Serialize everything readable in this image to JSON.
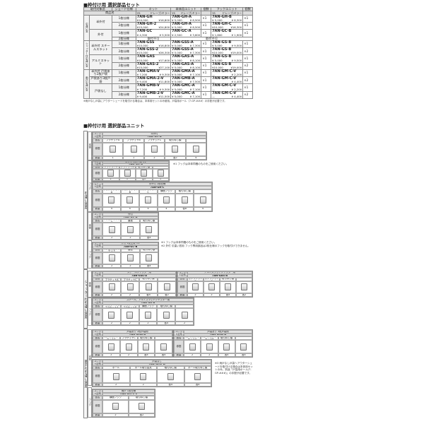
{
  "section1": {
    "title": "枠付け用 選択部品セット",
    "headers": {
      "category": "取付対象窓",
      "series": "シェード仕様",
      "product": "商品名",
      "kit": "キット",
      "body": "本体用ユニット",
      "qty": "個数",
      "hook": "フックユニット",
      "ys": "YS",
      "mon": "ドレープ/ミラー"
    },
    "rows": [
      {
        "g": "引違い窓",
        "s": "半外付",
        "spec": "1枚仕様",
        "kit": [
          "7AN-GH",
          "¥10,000",
          "¥16,800"
        ],
        "body": [
          "7AN-GH-A",
          "¥ 5,000",
          "¥ 8,500"
        ],
        "bq": "×1",
        "hook": [
          "7AN-GH-B",
          "¥ 5,000",
          "¥ 8,300"
        ],
        "hq": "×1"
      },
      {
        "g": "",
        "s": "",
        "spec": "2枚仕様",
        "kit": [
          "7AN-GH-2",
          "¥15,000",
          "¥24,800"
        ],
        "body": [
          "7AN-GH-A",
          "¥ 5,000",
          "¥ 8,500"
        ],
        "bq": "×1",
        "hook": [
          "7AN-GH-C",
          "¥10,000",
          "¥16,300"
        ],
        "hq": "×1"
      },
      {
        "g": "",
        "s": "外付",
        "spec": "1枚仕様",
        "kit": [
          "7AN-GC",
          "¥ 4,300",
          "¥ 5,500"
        ],
        "body": [
          "7AN-GC-A",
          "¥ 2,500",
          "¥ 3,600"
        ],
        "bq": "×1",
        "hook": [
          "7AN-GC-B",
          "¥ 1,800",
          "¥ 1,900"
        ],
        "hq": "×1"
      },
      {
        "g": "",
        "s": "",
        "spec": "2枚仕様",
        "na": "取付不可"
      },
      {
        "g": "シャッター付引違い窓",
        "s": "半外付 スチールスラット",
        "spec": "1枚仕様",
        "kit": [
          "7AN-GSS",
          "¥10,000",
          "¥16,800"
        ],
        "body": [
          "7AN-GSS-A",
          "¥ 5,000",
          "¥ 7,300"
        ],
        "bq": "×1",
        "hook": [
          "7AN-GS-B",
          "¥ 5,000",
          "¥ 9,500"
        ],
        "hq": "×1"
      },
      {
        "g": "",
        "s": "",
        "spec": "2枚仕様",
        "kit": [
          "7AN-GSS-2",
          "¥15,000",
          "¥26,300"
        ],
        "body": [
          "7AN-GSS-A",
          "¥ 5,000",
          "¥ 7,300"
        ],
        "bq": "×1",
        "hook": [
          "7AN-GS-B",
          "¥10,000",
          "¥19,000"
        ],
        "hq": "×2"
      },
      {
        "g": "",
        "s": "アルミスラット",
        "spec": "1枚仕様",
        "kit": [
          "7AN-GAS",
          "¥10,000",
          "¥17,600"
        ],
        "body": [
          "7AN-GAS-A",
          "¥ 5,000",
          "¥ 8,100"
        ],
        "bq": "×1",
        "hook": [
          "7AN-GS-B",
          "¥ 5,000",
          "¥ 9,500"
        ],
        "hq": "×1"
      },
      {
        "g": "",
        "s": "",
        "spec": "2枚仕様",
        "kit": [
          "7AN-GAS-2",
          "¥15,000",
          "¥27,100"
        ],
        "body": [
          "7AN-GAS-A",
          "¥ 5,000",
          "¥ 8,100"
        ],
        "bq": "×1",
        "hook": [
          "7AN-GS-B",
          "¥10,000",
          "¥19,000"
        ],
        "hq": "×2"
      },
      {
        "g": "雨戸引違い窓",
        "s": "半外付 戸袋あり2枚戸袋",
        "spec": "1枚仕様",
        "kit": [
          "7AN-GMA-V",
          "¥ 7,200",
          "¥ 9,300"
        ],
        "body": [
          "7AN-GMA-A",
          "¥ 5,000",
          "¥ 7,100"
        ],
        "bq": "×1",
        "hook": [
          "7AN-GM-C-V",
          "—",
          "¥ 2,200"
        ],
        "hq": "×1"
      },
      {
        "g": "",
        "s": "戸袋あり3枚戸袋",
        "spec": "2枚仕様",
        "kit": [
          "7AN-GMA-2-V",
          "¥ 9,400",
          "¥11,800"
        ],
        "body": [
          "7AN-GMB-A",
          "¥ 5,000",
          "¥ 7,500"
        ],
        "bq": "×1",
        "hook": [
          "7AN-GM-C-V",
          "—",
          "¥ 4,400"
        ],
        "hq": "×2"
      },
      {
        "g": "",
        "s": "戸袋なし",
        "spec": "1枚仕様",
        "kit": [
          "7AN-GMB-V",
          "¥ 7,200",
          "¥ 9,300"
        ],
        "body": [
          "7AN-GMC-A",
          "¥ 5,000",
          "¥ 7,100"
        ],
        "bq": "×1",
        "hook": [
          "7AN-GM-C-V",
          "—",
          "¥ 2,200"
        ],
        "hq": "×1"
      },
      {
        "g": "",
        "s": "",
        "spec": "2枚仕様",
        "kit": [
          "7AN-GMB-2-V",
          "¥ 9,400",
          "¥11,500"
        ],
        "body": [
          "7AN-GMC-A",
          "¥ 5,000",
          "¥ 7,100"
        ],
        "bq": "×1",
        "hook": [
          "7AN-GM-C-V",
          "—",
          "¥ 4,400"
        ],
        "hq": "×2"
      }
    ],
    "footnote": "※雨戸なし戸袋にアウターシェードを取付ける場合は、本体用セットのみ使用。戸袋用ポール（7-GP-###）の手配が必要です。"
  },
  "section2": {
    "title": "枠付け用 選択部品ユニット",
    "labels": {
      "unit": "ユニット記号",
      "name": "品名",
      "fig": "参図",
      "qty": "数量"
    },
    "groups": [
      "引違い窓用",
      "シャッター付引違い窓用",
      "雨戸付引違い窓用"
    ],
    "subs": {
      "body": "本体",
      "hook": "フック"
    },
    "units": [
      {
        "title": "半外付",
        "code": "7AN-GH-A",
        "parts": [
          [
            "ブラケットA",
            "1"
          ],
          [
            "ブラケットB",
            "1"
          ],
          [
            "ブラケットC",
            "2"
          ],
          [
            "取付ねじ類",
            "各2"
          ],
          [
            "",
            "4"
          ]
        ]
      },
      {
        "title": "半外付 1枚仕様 ※1",
        "code": "7AN-GH-B",
        "parts": [
          [
            "ブラケットC",
            "2"
          ],
          [
            "ブラケットD",
            "2"
          ],
          [
            "取付ねじ類",
            "各2"
          ],
          [
            "",
            "4"
          ]
        ]
      },
      {
        "title": "半外付 2枚仕様",
        "code": "7AN-GH-C",
        "parts": [
          [
            "下枠ブラケットA",
            "4"
          ],
          [
            "下枠ブラケットB",
            "4"
          ],
          [
            "下枠ブラケットC",
            "4"
          ],
          [
            "横面フック",
            "4"
          ],
          [
            "取付ねじ類",
            "各8"
          ],
          [
            "",
            "4"
          ]
        ]
      },
      {
        "title": "外付",
        "code": "7AN-GC-A",
        "parts": [
          [
            "本体用ブラケット",
            "2"
          ],
          [
            "裏板",
            "2"
          ],
          [
            "取付ねじ類",
            "各4"
          ]
        ]
      },
      {
        "title": "外付 1枚仕様 ※2",
        "code": "7AN-GC-B",
        "parts": [
          [
            "マグ締付用ブラケット",
            "2"
          ],
          [
            "裏板",
            "2"
          ],
          [
            "取付ねじ類",
            "各4"
          ]
        ]
      },
      {
        "title": "スチールシャッター用",
        "code": "7AN-GSS-A",
        "parts": [
          [
            "シャッター枠付ブラケットA",
            "2"
          ],
          [
            "シャッター枠付ブラケットC",
            "2"
          ],
          [
            "取付ねじ類",
            "各4"
          ],
          [
            "",
            "各2"
          ]
        ]
      },
      {
        "title": "アルミスラットシャッター用",
        "code": "7AN-GAS-A",
        "parts": [
          [
            "シャッター枠付ブラケットB",
            "2"
          ],
          [
            "シャッター枠付ブラケットC",
            "2"
          ],
          [
            "取付ねじ類",
            "各4"
          ],
          [
            "",
            "各2"
          ]
        ]
      },
      {
        "title": "スチール、アルミスラットシャッター用",
        "code": "7AN-GS-B",
        "parts": [
          [
            "シャッター下枠ブラケットA",
            "2"
          ],
          [
            "シャッター下枠ブラケットB",
            "2"
          ],
          [
            "横面フック",
            "2"
          ],
          [
            "取付ねじ類",
            "各4"
          ],
          [
            "",
            "2"
          ]
        ]
      },
      {
        "title": "戸袋あり 2枚戸袋用",
        "code": "7AN-GMA-A",
        "parts": [
          [
            "雨戸枠付ブラケットA",
            "2"
          ],
          [
            "ブラケットC",
            "2"
          ],
          [
            "取付ねじ類",
            "各4"
          ],
          [
            "",
            "各4"
          ]
        ]
      },
      {
        "title": "戸袋あり 3枚戸袋用",
        "code": "7AN-GMB-A",
        "parts": [
          [
            "雨戸枠付ブラケットA",
            "2"
          ],
          [
            "雨戸枠付ブラケットB",
            "2"
          ],
          [
            "取付ねじ類",
            "各4"
          ],
          [
            "",
            "各4"
          ]
        ]
      },
      {
        "title": "戸袋なし",
        "code": "7AN-GMC-A",
        "parts": [
          [
            "ポール",
            "2"
          ],
          [
            "ポール取付金具",
            "2"
          ],
          [
            "取付ねじ類",
            "各4"
          ],
          [
            "ポール取付ねじ類",
            "各4"
          ]
        ]
      },
      {
        "title": "雨戸 1枚仕様",
        "code": "7AN-GM-C-V",
        "parts": [
          [
            "横面フック",
            "2"
          ],
          [
            "取付ねじ類",
            "各2"
          ]
        ]
      }
    ],
    "notes": [
      "※1 フックは本体同梱のものをご使用ください。",
      "※1 フックは本体同梱のものをご使用ください。\n※2 外付 引違い窓用 フック専用部品は2枚仕様のフックを取付けできません。",
      "※3 雨戸なし戸袋へアウターシェードを取付ける場合は本体用セットのみ。別途「戸袋用ポール(7-GP-###)」の手配が必要です。"
    ]
  }
}
